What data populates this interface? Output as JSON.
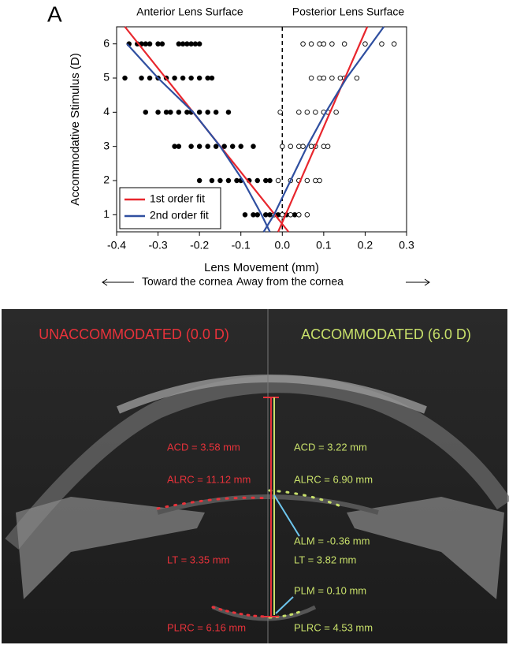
{
  "panel_label": "A",
  "chart_data": {
    "type": "scatter",
    "y_label": "Accommodative Stimulus (D)",
    "x_label": "Lens Movement (mm)",
    "annotations": [
      "Toward the cornea",
      "Away from the cornea"
    ],
    "xlim": [
      -0.4,
      0.3
    ],
    "xticks": [
      -0.4,
      -0.3,
      -0.2,
      -0.1,
      {
        "value": 0,
        "label": "0.0"
      },
      0.1,
      0.2,
      0.3
    ],
    "ylim": [
      0.5,
      6.5
    ],
    "yticks": [
      1,
      2,
      3,
      4,
      5,
      6
    ],
    "vline": 0,
    "legend": "lower-left",
    "series": [
      {
        "name": "Anterior Lens Surface",
        "type": "scatter",
        "marker": "filled",
        "color": "#000000",
        "x": [
          -0.37,
          -0.35,
          -0.34,
          -0.33,
          -0.32,
          -0.3,
          -0.29,
          -0.25,
          -0.24,
          -0.23,
          -0.22,
          -0.21,
          -0.2,
          -0.38,
          -0.34,
          -0.32,
          -0.3,
          -0.28,
          -0.26,
          -0.24,
          -0.22,
          -0.2,
          -0.18,
          -0.17,
          -0.33,
          -0.3,
          -0.28,
          -0.27,
          -0.25,
          -0.23,
          -0.22,
          -0.2,
          -0.18,
          -0.16,
          -0.13,
          -0.26,
          -0.25,
          -0.22,
          -0.2,
          -0.18,
          -0.16,
          -0.14,
          -0.12,
          -0.1,
          -0.07,
          -0.2,
          -0.17,
          -0.15,
          -0.13,
          -0.11,
          -0.1,
          -0.08,
          -0.06,
          -0.04,
          -0.03,
          -0.09,
          -0.07,
          -0.06,
          -0.04,
          -0.03,
          -0.02,
          -0.01,
          0,
          0.01,
          0.03
        ],
        "values": [
          6,
          6,
          6,
          6,
          6,
          6,
          6,
          6,
          6,
          6,
          6,
          6,
          6,
          5,
          5,
          5,
          5,
          5,
          5,
          5,
          5,
          5,
          5,
          5,
          4,
          4,
          4,
          4,
          4,
          4,
          4,
          4,
          4,
          4,
          4,
          3,
          3,
          3,
          3,
          3,
          3,
          3,
          3,
          3,
          3,
          2,
          2,
          2,
          2,
          2,
          2,
          2,
          2,
          2,
          2,
          1,
          1,
          1,
          1,
          1,
          1,
          1,
          1,
          1,
          1
        ]
      },
      {
        "name": "Posterior Lens Surface",
        "type": "scatter",
        "marker": "open",
        "color": "#000000",
        "x": [
          0.05,
          0.07,
          0.09,
          0.1,
          0.12,
          0.15,
          0.2,
          0.24,
          0.27,
          0.07,
          0.09,
          0.1,
          0.12,
          0.14,
          0.15,
          0.18,
          -0.005,
          0.04,
          0.06,
          0.08,
          0.1,
          0.11,
          0.13,
          0,
          0.02,
          0.04,
          0.05,
          0.07,
          0.08,
          0.1,
          0.11,
          -0.01,
          0.02,
          0.04,
          0.06,
          0.08,
          0.09,
          -0.02,
          0,
          0.02,
          0.04,
          0.06
        ],
        "values": [
          6,
          6,
          6,
          6,
          6,
          6,
          6,
          6,
          6,
          5,
          5,
          5,
          5,
          5,
          5,
          5,
          4,
          4,
          4,
          4,
          4,
          4,
          4,
          3,
          3,
          3,
          3,
          3,
          3,
          3,
          3,
          2,
          2,
          2,
          2,
          2,
          2,
          1,
          1,
          1,
          1,
          1
        ]
      },
      {
        "name": "1st order fit",
        "type": "line",
        "color": "#e8262d",
        "x": [
          -0.38,
          0.015,
          null,
          -0.01,
          0.205
        ],
        "values": [
          6.5,
          0.5,
          null,
          0.5,
          6.5
        ]
      },
      {
        "name": "2nd order fit",
        "type": "line",
        "color": "#2f4fa0",
        "x": [
          -0.375,
          -0.3,
          -0.215,
          -0.15,
          -0.095,
          -0.05,
          -0.03,
          null,
          -0.045,
          -0.02,
          0.02,
          0.06,
          0.105,
          0.155,
          0.215,
          0.245
        ],
        "values": [
          6,
          5,
          4,
          3,
          2,
          1,
          0.5,
          null,
          0.5,
          1,
          2,
          3,
          4,
          5,
          6,
          6.5
        ]
      }
    ]
  },
  "image_panel": {
    "left_title": "UNACCOMMODATED (0.0 D)",
    "right_title": "ACCOMMODATED (6.0 D)",
    "left_labels": [
      "ACD = 3.58 mm",
      "ALRC = 11.12 mm",
      "LT = 3.35 mm",
      "PLRC = 6.16 mm"
    ],
    "right_labels": [
      "ACD = 3.22 mm",
      "ALRC = 6.90 mm",
      "ALM = -0.36 mm",
      "LT = 3.82 mm",
      "PLM = 0.10 mm",
      "PLRC = 4.53 mm"
    ]
  }
}
